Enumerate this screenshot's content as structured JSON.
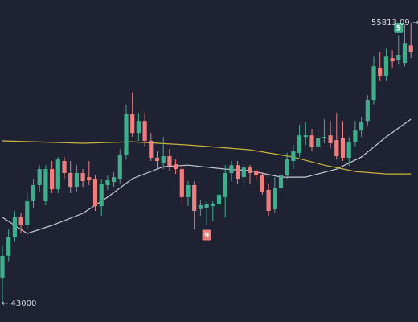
{
  "chart_data": {
    "type": "candlestick",
    "high_label": "55813.09 →",
    "low_label": "← 43000",
    "up_color": "#3fae8c",
    "down_color": "#ef7f7f",
    "ylim": [
      42150,
      56850
    ],
    "candles": [
      [
        44175,
        45640,
        43000,
        45166
      ],
      [
        45170,
        46380,
        44910,
        46010
      ],
      [
        46010,
        47220,
        45830,
        46930
      ],
      [
        46930,
        47110,
        46190,
        46560
      ],
      [
        46560,
        48030,
        46380,
        47660
      ],
      [
        47660,
        48690,
        47370,
        48400
      ],
      [
        48400,
        49310,
        48100,
        49130
      ],
      [
        47660,
        49310,
        47480,
        49130
      ],
      [
        49130,
        49500,
        48030,
        48210
      ],
      [
        48210,
        49680,
        48030,
        49570
      ],
      [
        49500,
        49680,
        48690,
        48950
      ],
      [
        48950,
        49500,
        48030,
        48320
      ],
      [
        48320,
        49310,
        48100,
        48950
      ],
      [
        48950,
        49130,
        48320,
        48580
      ],
      [
        48760,
        49500,
        48400,
        48620
      ],
      [
        48690,
        48840,
        47220,
        47440
      ],
      [
        47440,
        48690,
        47000,
        48470
      ],
      [
        48400,
        48840,
        48180,
        48620
      ],
      [
        48540,
        48980,
        48320,
        48760
      ],
      [
        48690,
        50050,
        48470,
        49790
      ],
      [
        49790,
        52070,
        49570,
        51630
      ],
      [
        51630,
        52620,
        50600,
        50780
      ],
      [
        50780,
        51700,
        50420,
        51330
      ],
      [
        51330,
        51700,
        50160,
        50420
      ],
      [
        50420,
        50780,
        49500,
        49650
      ],
      [
        49650,
        49940,
        49130,
        49500
      ],
      [
        49420,
        50600,
        49130,
        49720
      ],
      [
        49720,
        50050,
        49060,
        49280
      ],
      [
        49350,
        49570,
        48910,
        49130
      ],
      [
        49130,
        49310,
        47590,
        47850
      ],
      [
        47850,
        48580,
        47440,
        48400
      ],
      [
        48400,
        48580,
        46380,
        47220
      ],
      [
        47300,
        47740,
        47000,
        47480
      ],
      [
        47370,
        47660,
        46560,
        47520
      ],
      [
        47440,
        47660,
        46750,
        47520
      ],
      [
        47520,
        48950,
        47370,
        47960
      ],
      [
        47850,
        49310,
        46930,
        48950
      ],
      [
        48950,
        49500,
        48580,
        49310
      ],
      [
        49310,
        49500,
        48470,
        48690
      ],
      [
        48760,
        49350,
        48400,
        49200
      ],
      [
        49200,
        49310,
        48470,
        48950
      ],
      [
        49020,
        49130,
        48620,
        48840
      ],
      [
        48840,
        48980,
        47960,
        48100
      ],
      [
        48180,
        48470,
        47000,
        47220
      ],
      [
        47300,
        48760,
        47150,
        48250
      ],
      [
        48250,
        49060,
        48030,
        48840
      ],
      [
        48840,
        49870,
        48690,
        49570
      ],
      [
        49500,
        50230,
        49130,
        49940
      ],
      [
        49870,
        51150,
        49680,
        50670
      ],
      [
        50600,
        51260,
        50230,
        50670
      ],
      [
        50670,
        50970,
        49940,
        50160
      ],
      [
        50160,
        50890,
        50010,
        50530
      ],
      [
        50530,
        51410,
        50310,
        50600
      ],
      [
        50670,
        51330,
        50080,
        50310
      ],
      [
        50450,
        51700,
        49570,
        49720
      ],
      [
        50530,
        51330,
        49500,
        49650
      ],
      [
        49650,
        50600,
        49280,
        50380
      ],
      [
        50380,
        51330,
        50160,
        50890
      ],
      [
        50890,
        51520,
        50600,
        51260
      ],
      [
        51330,
        52510,
        51110,
        52290
      ],
      [
        52290,
        54270,
        52070,
        53830
      ],
      [
        53760,
        54490,
        53170,
        53390
      ],
      [
        53390,
        54640,
        53170,
        54270
      ],
      [
        54200,
        54560,
        53760,
        54050
      ],
      [
        54120,
        55220,
        53900,
        54350
      ],
      [
        53980,
        55740,
        53830,
        54860
      ],
      [
        54780,
        55810,
        54200,
        54490
      ]
    ],
    "overlays": [
      {
        "color": "#c9c9d3",
        "x": [
          0,
          4,
          8,
          13,
          17,
          21,
          26,
          30,
          36,
          40,
          45,
          49,
          54,
          58,
          62,
          66
        ],
        "values": [
          46930,
          46190,
          46560,
          47110,
          47850,
          48690,
          49240,
          49310,
          49130,
          49060,
          48760,
          48760,
          49130,
          49680,
          50600,
          51410
        ]
      },
      {
        "color": "#c8b43c",
        "x": [
          0,
          13,
          21,
          30,
          40,
          47,
          52,
          57,
          62,
          66
        ],
        "values": [
          50420,
          50310,
          50380,
          50230,
          50010,
          49680,
          49310,
          49020,
          48910,
          48910
        ]
      }
    ],
    "markers": [
      {
        "candle": 64,
        "label": "9",
        "color": "#3fae8c",
        "position": "above"
      },
      {
        "candle": 33,
        "label": "9",
        "color": "#ef7f7f",
        "position": "below"
      }
    ]
  }
}
